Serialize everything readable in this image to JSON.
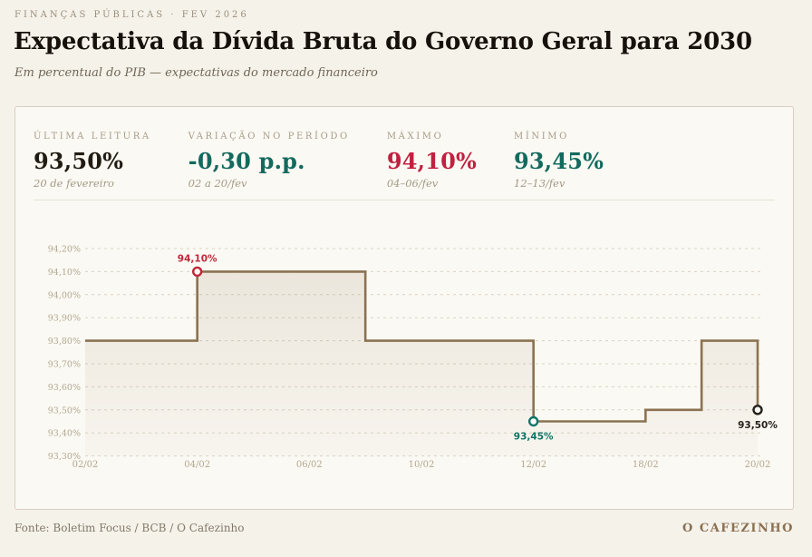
{
  "header": {
    "kicker": "FINANÇAS PÚBLICAS · FEV 2026",
    "title": "Expectativa da Dívida Bruta do Governo Geral para 2030",
    "subtitle": "Em percentual do PIB — expectativas do mercado financeiro"
  },
  "stats": [
    {
      "label": "ÚLTIMA LEITURA",
      "value": "93,50%",
      "sub": "20 de fevereiro",
      "color": "#211c13"
    },
    {
      "label": "VARIAÇÃO NO PERÍODO",
      "value": "-0,30 p.p.",
      "sub": "02 a 20/fev",
      "color": "#136a5e"
    },
    {
      "label": "MÁXIMO",
      "value": "94,10%",
      "sub": "04–06/fev",
      "color": "#c02140"
    },
    {
      "label": "MÍNIMO",
      "value": "93,45%",
      "sub": "12–13/fev",
      "color": "#136a5e"
    }
  ],
  "chart_data": {
    "type": "area",
    "step": true,
    "x": [
      "02/02",
      "03/02",
      "04/02",
      "05/02",
      "06/02",
      "09/02",
      "10/02",
      "11/02",
      "12/02",
      "13/02",
      "18/02",
      "19/02",
      "20/02"
    ],
    "values": [
      93.8,
      93.8,
      94.1,
      94.1,
      94.1,
      93.8,
      93.8,
      93.8,
      93.45,
      93.45,
      93.5,
      93.8,
      93.5
    ],
    "ylim": [
      93.3,
      94.2
    ],
    "ytick_step": 0.1,
    "ytick_labels": [
      "94,20%",
      "94,10%",
      "94,00%",
      "93,90%",
      "93,80%",
      "93,70%",
      "93,60%",
      "93,50%",
      "93,40%",
      "93,30%"
    ],
    "xtick_labels": [
      "02/02",
      "04/02",
      "06/02",
      "10/02",
      "12/02",
      "18/02",
      "20/02"
    ],
    "xtick_indices": [
      0,
      2,
      4,
      6,
      8,
      10,
      12
    ],
    "grid": true,
    "legend": false,
    "line_color": "#8b7252",
    "fill_color_top": "rgba(139,114,82,0.14)",
    "fill_color_bottom": "rgba(139,114,82,0.03)",
    "grid_color": "#d9d3c3",
    "marker_fill": "#fdfbf5",
    "markers": [
      {
        "name": "max",
        "index": 2,
        "label": "94,10%",
        "color": "#c0283c",
        "label_position": "above"
      },
      {
        "name": "min",
        "index": 8,
        "label": "93,45%",
        "color": "#0e7466",
        "label_position": "below"
      },
      {
        "name": "last",
        "index": 12,
        "label": "93,50%",
        "color": "#26211a",
        "label_position": "below"
      }
    ]
  },
  "footer": {
    "source": "Fonte: Boletim Focus / BCB / O Cafezinho",
    "brand": "O CAFEZINHO"
  }
}
